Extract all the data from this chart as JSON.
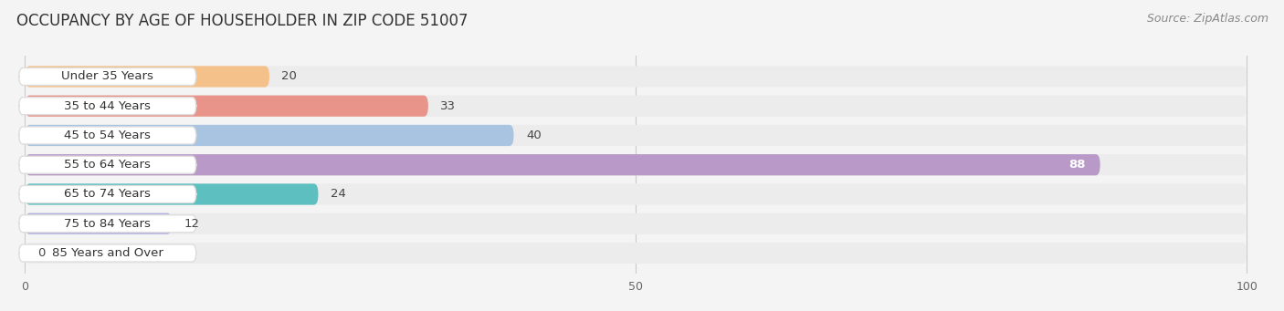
{
  "title": "OCCUPANCY BY AGE OF HOUSEHOLDER IN ZIP CODE 51007",
  "source": "Source: ZipAtlas.com",
  "categories": [
    "Under 35 Years",
    "35 to 44 Years",
    "45 to 54 Years",
    "55 to 64 Years",
    "65 to 74 Years",
    "75 to 84 Years",
    "85 Years and Over"
  ],
  "values": [
    20,
    33,
    40,
    88,
    24,
    12,
    0
  ],
  "bar_colors": [
    "#F5C18A",
    "#E8948A",
    "#A8C4E0",
    "#B899C8",
    "#5DBFBF",
    "#B0B0E0",
    "#F5A0B8"
  ],
  "xlim_min": 0,
  "xlim_max": 100,
  "x_ticks": [
    0,
    50,
    100
  ],
  "background_color": "#f4f4f4",
  "row_bg_color": "#ececec",
  "title_fontsize": 12,
  "source_fontsize": 9,
  "label_fontsize": 9.5,
  "value_fontsize": 9.5
}
